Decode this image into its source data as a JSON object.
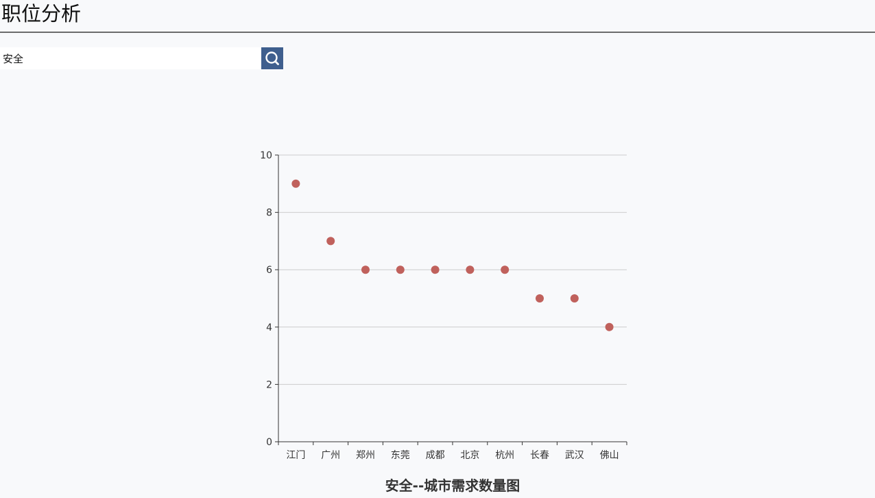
{
  "header": {
    "title": "职位分析"
  },
  "search": {
    "value": "安全",
    "button_icon": "search-icon"
  },
  "colors": {
    "header_rule": "#6b6b6b",
    "search_button": "#3f5f8e",
    "point": "#c0615c",
    "grid": "#cccccc",
    "axis": "#333333"
  },
  "chart_data": {
    "type": "scatter",
    "title": "安全--城市需求数量图",
    "xlabel": "",
    "ylabel": "",
    "categories": [
      "江门",
      "广州",
      "郑州",
      "东莞",
      "成都",
      "北京",
      "杭州",
      "长春",
      "武汉",
      "佛山"
    ],
    "values": [
      9,
      7,
      6,
      6,
      6,
      6,
      6,
      5,
      5,
      4
    ],
    "ylim": [
      0,
      10
    ],
    "yticks": [
      0,
      2,
      4,
      6,
      8,
      10
    ],
    "grid": true,
    "legend": "none"
  }
}
